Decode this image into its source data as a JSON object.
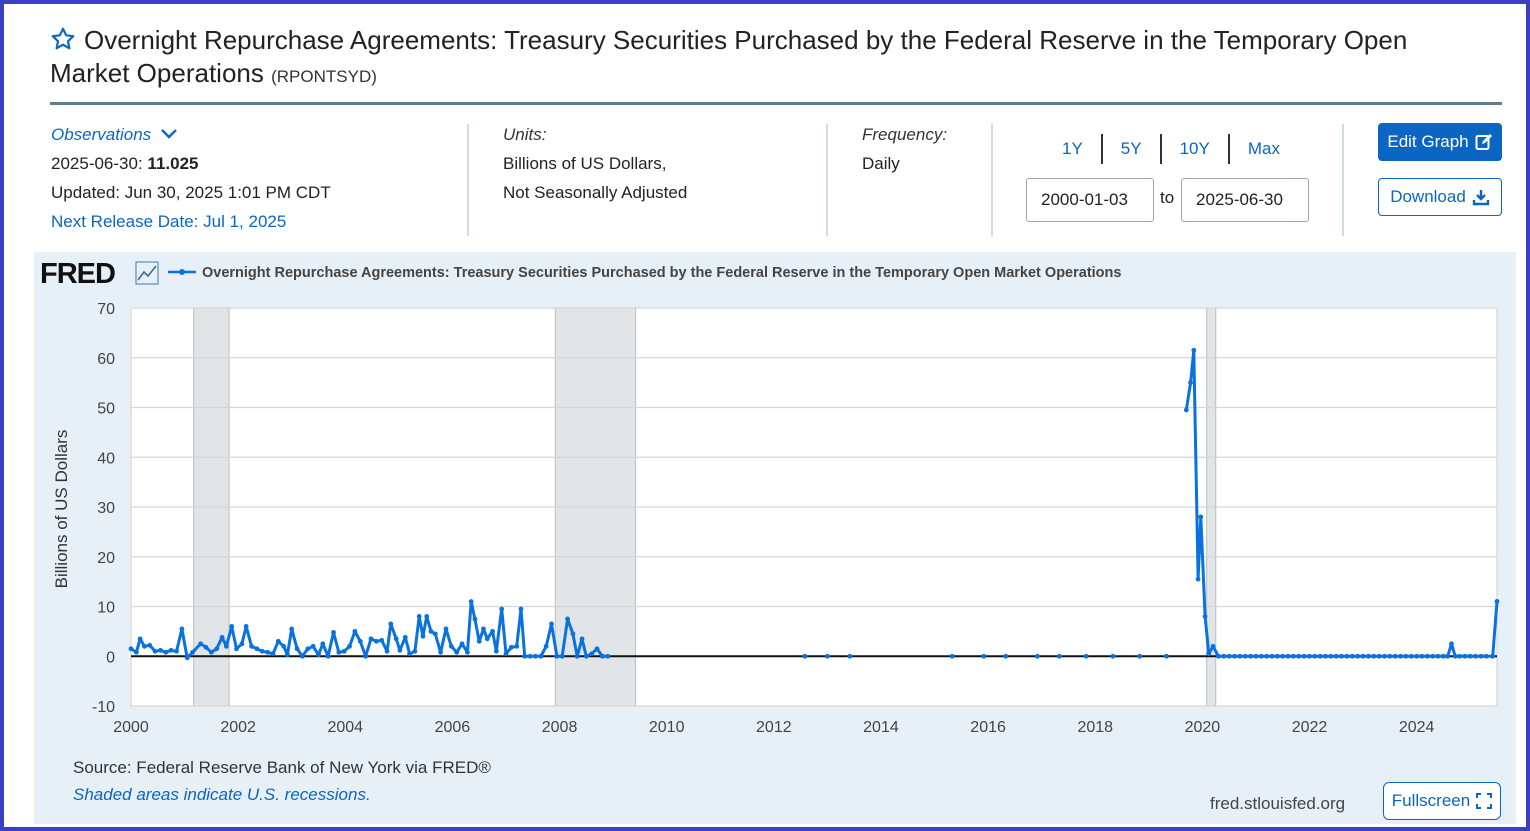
{
  "header": {
    "title": "Overnight Repurchase Agreements: Treasury Securities Purchased by the Federal Reserve in the Temporary Open Market Operations",
    "series_id": "(RPONTSYD)",
    "star_icon": "star-outline-icon"
  },
  "observations": {
    "label": "Observations",
    "date": "2025-06-30:",
    "value": "11.025",
    "updated": "Updated: Jun 30, 2025 1:01 PM CDT",
    "next_release": "Next Release Date: Jul 1, 2025"
  },
  "units": {
    "label": "Units:",
    "line1": "Billions of US Dollars,",
    "line2": "Not Seasonally Adjusted"
  },
  "frequency": {
    "label": "Frequency:",
    "value": "Daily"
  },
  "range_buttons": [
    "1Y",
    "5Y",
    "10Y",
    "Max"
  ],
  "date_range": {
    "start": "2000-01-03",
    "to": "to",
    "end": "2025-06-30"
  },
  "buttons": {
    "edit": "Edit Graph",
    "download": "Download",
    "fullscreen": "Fullscreen"
  },
  "footer": {
    "source": "Source: Federal Reserve Bank of New York via FRED®",
    "shade_note": "Shaded areas indicate U.S. recessions.",
    "site": "fred.stlouisfed.org"
  },
  "chart_data": {
    "type": "line",
    "logo": "FRED",
    "legend": "Overnight Repurchase Agreements: Treasury Securities Purchased by the Federal Reserve in the Temporary Open Market Operations",
    "legend_position": "top-left",
    "ylabel": "Billions of US Dollars",
    "xlim": [
      2000,
      2025.5
    ],
    "ylim": [
      -10,
      70
    ],
    "y_ticks": [
      -10,
      0,
      10,
      20,
      30,
      40,
      50,
      60,
      70
    ],
    "x_ticks": [
      2000,
      2002,
      2004,
      2006,
      2008,
      2010,
      2012,
      2014,
      2016,
      2018,
      2020,
      2022,
      2024
    ],
    "grid": true,
    "line_color": "#0a72e0",
    "recessions": [
      [
        2001.17,
        2001.83
      ],
      [
        2007.92,
        2009.42
      ],
      [
        2020.08,
        2020.25
      ]
    ],
    "series": [
      {
        "points": [
          [
            2000.0,
            1.5
          ],
          [
            2000.1,
            0.8
          ],
          [
            2000.17,
            3.5
          ],
          [
            2000.25,
            2.0
          ],
          [
            2000.35,
            2.2
          ],
          [
            2000.45,
            1.0
          ],
          [
            2000.55,
            1.2
          ],
          [
            2000.65,
            0.8
          ],
          [
            2000.75,
            1.2
          ],
          [
            2000.85,
            1.0
          ],
          [
            2000.95,
            5.5
          ],
          [
            2001.05,
            -0.3
          ],
          [
            2001.15,
            0.8
          ],
          [
            2001.3,
            2.5
          ],
          [
            2001.4,
            1.8
          ],
          [
            2001.5,
            0.8
          ],
          [
            2001.6,
            1.5
          ],
          [
            2001.7,
            3.8
          ],
          [
            2001.78,
            2.0
          ],
          [
            2001.88,
            6.0
          ],
          [
            2001.97,
            1.5
          ],
          [
            2002.07,
            2.5
          ],
          [
            2002.15,
            6.0
          ],
          [
            2002.25,
            2.0
          ],
          [
            2002.35,
            1.5
          ],
          [
            2002.45,
            1.0
          ],
          [
            2002.55,
            0.8
          ],
          [
            2002.65,
            0.5
          ],
          [
            2002.75,
            3.0
          ],
          [
            2002.85,
            2.0
          ],
          [
            2002.92,
            0.3
          ],
          [
            2003.0,
            5.5
          ],
          [
            2003.1,
            1.5
          ],
          [
            2003.2,
            0.0
          ],
          [
            2003.3,
            1.5
          ],
          [
            2003.4,
            2.0
          ],
          [
            2003.5,
            0.3
          ],
          [
            2003.58,
            2.5
          ],
          [
            2003.68,
            0.0
          ],
          [
            2003.78,
            4.8
          ],
          [
            2003.88,
            0.8
          ],
          [
            2003.98,
            1.0
          ],
          [
            2004.08,
            2.0
          ],
          [
            2004.18,
            5.0
          ],
          [
            2004.28,
            3.0
          ],
          [
            2004.38,
            0.0
          ],
          [
            2004.48,
            3.5
          ],
          [
            2004.58,
            3.0
          ],
          [
            2004.68,
            3.2
          ],
          [
            2004.78,
            1.0
          ],
          [
            2004.85,
            6.5
          ],
          [
            2004.95,
            3.5
          ],
          [
            2005.02,
            1.2
          ],
          [
            2005.12,
            3.8
          ],
          [
            2005.2,
            0.5
          ],
          [
            2005.3,
            1.0
          ],
          [
            2005.38,
            8.0
          ],
          [
            2005.45,
            4.0
          ],
          [
            2005.52,
            8.0
          ],
          [
            2005.6,
            5.0
          ],
          [
            2005.68,
            4.5
          ],
          [
            2005.78,
            0.8
          ],
          [
            2005.88,
            5.5
          ],
          [
            2005.98,
            2.0
          ],
          [
            2006.08,
            0.8
          ],
          [
            2006.18,
            2.5
          ],
          [
            2006.28,
            0.8
          ],
          [
            2006.35,
            11.0
          ],
          [
            2006.42,
            7.5
          ],
          [
            2006.5,
            3.0
          ],
          [
            2006.58,
            5.5
          ],
          [
            2006.65,
            3.5
          ],
          [
            2006.75,
            5.0
          ],
          [
            2006.82,
            1.0
          ],
          [
            2006.92,
            9.5
          ],
          [
            2007.0,
            0.5
          ],
          [
            2007.1,
            1.8
          ],
          [
            2007.2,
            2.0
          ],
          [
            2007.28,
            9.5
          ],
          [
            2007.35,
            0.0
          ],
          [
            2007.45,
            0.0
          ],
          [
            2007.55,
            0.0
          ],
          [
            2007.65,
            0.0
          ],
          [
            2007.75,
            2.0
          ],
          [
            2007.85,
            6.5
          ],
          [
            2007.95,
            0.0
          ],
          [
            2008.05,
            0.0
          ],
          [
            2008.15,
            7.5
          ],
          [
            2008.25,
            4.5
          ],
          [
            2008.33,
            0.0
          ],
          [
            2008.42,
            3.5
          ],
          [
            2008.5,
            0.0
          ],
          [
            2008.6,
            0.5
          ],
          [
            2008.7,
            1.5
          ],
          [
            2008.8,
            0.0
          ],
          [
            2008.9,
            0.0
          ]
        ]
      },
      {
        "points": [
          [
            2012.58,
            0.0
          ]
        ]
      },
      {
        "points": [
          [
            2013.0,
            0.0
          ]
        ]
      },
      {
        "points": [
          [
            2013.42,
            0.0
          ]
        ]
      },
      {
        "points": [
          [
            2015.33,
            0.0
          ]
        ]
      },
      {
        "points": [
          [
            2015.92,
            0.0
          ]
        ]
      },
      {
        "points": [
          [
            2016.33,
            0.0
          ]
        ]
      },
      {
        "points": [
          [
            2016.92,
            0.0
          ]
        ]
      },
      {
        "points": [
          [
            2017.33,
            0.0
          ]
        ]
      },
      {
        "points": [
          [
            2017.83,
            0.0
          ]
        ]
      },
      {
        "points": [
          [
            2018.33,
            0.0
          ]
        ]
      },
      {
        "points": [
          [
            2018.83,
            0.0
          ]
        ]
      },
      {
        "points": [
          [
            2019.33,
            0.0
          ]
        ]
      },
      {
        "points": [
          [
            2019.7,
            49.5
          ],
          [
            2019.78,
            55.0
          ],
          [
            2019.84,
            61.5
          ],
          [
            2019.92,
            15.5
          ],
          [
            2019.97,
            28.0
          ],
          [
            2020.05,
            8.0
          ],
          [
            2020.12,
            0.5
          ],
          [
            2020.2,
            2.0
          ],
          [
            2020.3,
            0.0
          ],
          [
            2020.4,
            0.0
          ],
          [
            2020.5,
            0.0
          ],
          [
            2020.6,
            0.0
          ],
          [
            2020.7,
            0.0
          ],
          [
            2020.8,
            0.0
          ],
          [
            2020.9,
            0.0
          ],
          [
            2021.0,
            0.0
          ],
          [
            2021.1,
            0.0
          ],
          [
            2021.2,
            0.0
          ],
          [
            2021.3,
            0.0
          ],
          [
            2021.4,
            0.0
          ],
          [
            2021.5,
            0.0
          ],
          [
            2021.6,
            0.0
          ],
          [
            2021.7,
            0.0
          ],
          [
            2021.8,
            0.0
          ],
          [
            2021.9,
            0.0
          ],
          [
            2022.0,
            0.0
          ],
          [
            2022.1,
            0.0
          ],
          [
            2022.2,
            0.0
          ],
          [
            2022.3,
            0.0
          ],
          [
            2022.4,
            0.0
          ],
          [
            2022.5,
            0.0
          ],
          [
            2022.6,
            0.0
          ],
          [
            2022.7,
            0.0
          ],
          [
            2022.8,
            0.0
          ],
          [
            2022.9,
            0.0
          ],
          [
            2023.0,
            0.0
          ],
          [
            2023.1,
            0.0
          ],
          [
            2023.2,
            0.0
          ],
          [
            2023.3,
            0.0
          ],
          [
            2023.4,
            0.0
          ],
          [
            2023.5,
            0.0
          ],
          [
            2023.6,
            0.0
          ],
          [
            2023.7,
            0.0
          ],
          [
            2023.8,
            0.0
          ],
          [
            2023.9,
            0.0
          ],
          [
            2024.0,
            0.0
          ],
          [
            2024.1,
            0.0
          ],
          [
            2024.2,
            0.0
          ],
          [
            2024.3,
            0.0
          ],
          [
            2024.4,
            0.0
          ],
          [
            2024.5,
            0.0
          ],
          [
            2024.58,
            0.0
          ],
          [
            2024.65,
            2.5
          ],
          [
            2024.72,
            0.0
          ],
          [
            2024.8,
            0.0
          ],
          [
            2024.9,
            0.0
          ],
          [
            2025.0,
            0.0
          ],
          [
            2025.1,
            0.0
          ],
          [
            2025.2,
            0.0
          ],
          [
            2025.3,
            0.0
          ],
          [
            2025.42,
            0.0
          ],
          [
            2025.5,
            11.025
          ]
        ]
      }
    ]
  }
}
